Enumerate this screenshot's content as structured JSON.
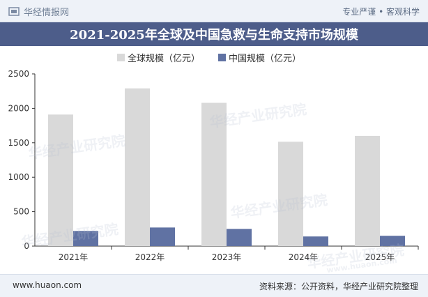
{
  "header": {
    "brand_name": "华经情报网",
    "tagline": "专业严谨 • 客观科学"
  },
  "footer": {
    "url": "www.huaon.com",
    "source": "资料来源：公开资料，华经产业研究院整理"
  },
  "watermark": {
    "text": "华经产业研究院",
    "url_text": "www.huaon.com"
  },
  "colors": {
    "global": "#d9d9d9",
    "china": "#6072a3",
    "title_band": "#4d5d8a"
  },
  "chart_data": {
    "type": "bar",
    "title": "2021-2025年全球及中国急救与生命支持市场规模",
    "categories": [
      "2021年",
      "2022年",
      "2023年",
      "2024年",
      "2025年"
    ],
    "series": [
      {
        "name": "全球规模（亿元）",
        "values": [
          1910,
          2290,
          2080,
          1515,
          1600
        ]
      },
      {
        "name": "中国规模（亿元）",
        "values": [
          220,
          270,
          250,
          140,
          150
        ]
      }
    ],
    "ylim": [
      0,
      2500
    ],
    "yticks": [
      "0",
      "500",
      "1000",
      "1500",
      "2000",
      "2500"
    ],
    "xlabel": "",
    "ylabel": "",
    "grid": false,
    "legend": "top"
  }
}
